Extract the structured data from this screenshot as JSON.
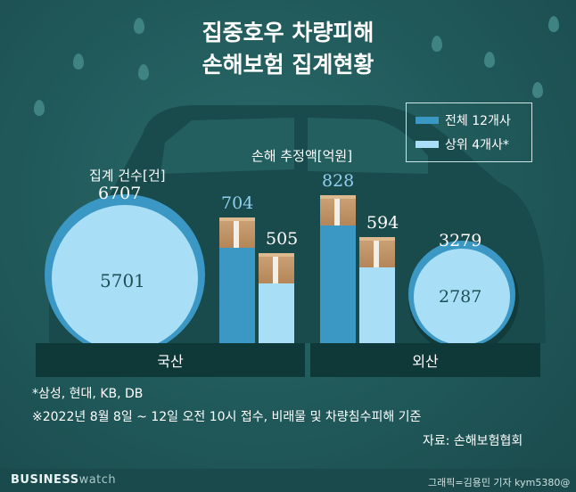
{
  "chart_data": {
    "type": "bar",
    "title_line1": "집중호우 차량피해",
    "title_line2": "손해보험 집계현황",
    "categories": [
      "국산",
      "외산"
    ],
    "legend": [
      {
        "label": "전체 12개사",
        "color": "#3b98c4"
      },
      {
        "label": "상위 4개사*",
        "color": "#a9dff6"
      }
    ],
    "count_label": "집계 건수[건]",
    "damage_label": "손해 추정액[억원]",
    "counts": {
      "domestic_total": "6707",
      "domestic_top4": "5701",
      "foreign_total": "3279",
      "foreign_top4": "2787"
    },
    "series": [
      {
        "name": "전체 12개사",
        "values": [
          704,
          828
        ]
      },
      {
        "name": "상위 4개사*",
        "values": [
          505,
          594
        ]
      }
    ],
    "notes": [
      "*삼성, 현대, KB, DB",
      "※2022년 8월 8일 ~ 12일 오전 10시 접수, 비래물 및 차량침수피해 기준"
    ],
    "source": "자료: 손해보험협회"
  },
  "footer": {
    "brand_business": "BUSINESS",
    "brand_watch": "watch",
    "credit": "그래픽=김용민 기자 kym5380@"
  }
}
